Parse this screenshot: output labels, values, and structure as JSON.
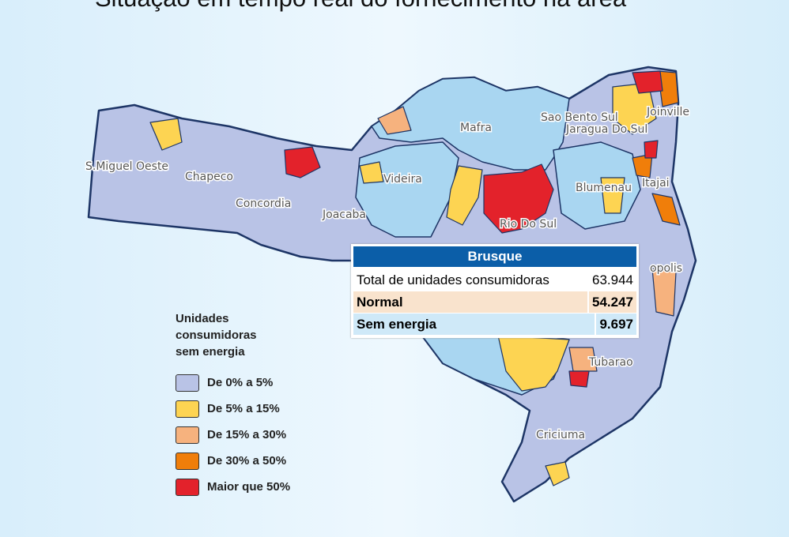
{
  "title": "Situação em tempo real do fornecimento na área",
  "cities": [
    {
      "label": "S.Miguel Oeste"
    },
    {
      "label": "Chapeco"
    },
    {
      "label": "Concordia"
    },
    {
      "label": "Joacaba"
    },
    {
      "label": "Videira"
    },
    {
      "label": "Mafra"
    },
    {
      "label": "Sao Bento Sul"
    },
    {
      "label": "Jaragua Do Sul"
    },
    {
      "label": "Joinville"
    },
    {
      "label": "Blumenau"
    },
    {
      "label": "Itajai"
    },
    {
      "label": "Rio Do Sul"
    },
    {
      "label": "opolis"
    },
    {
      "label": "Tubarao"
    },
    {
      "label": "Criciuma"
    }
  ],
  "legend": {
    "title": [
      "Unidades",
      "consumidoras",
      "sem energia"
    ],
    "items": [
      {
        "label": "De 0% a 5%",
        "color": "#b9c3e6"
      },
      {
        "label": "De 5% a 15%",
        "color": "#fdd452"
      },
      {
        "label": "De 15% a 30%",
        "color": "#f6b27e"
      },
      {
        "label": "De 30% a 50%",
        "color": "#f07e0a"
      },
      {
        "label": "Maior que 50%",
        "color": "#e3222b"
      }
    ]
  },
  "tooltip": {
    "title": "Brusque",
    "rows": [
      [
        "Total de unidades consumidoras",
        "63.944"
      ],
      [
        "Normal",
        "54.247"
      ],
      [
        "Sem energia",
        "9.697"
      ]
    ]
  }
}
